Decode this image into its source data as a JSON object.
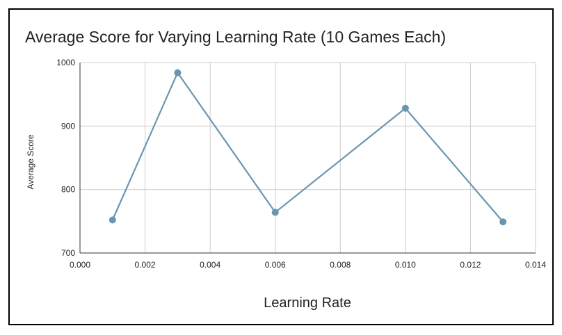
{
  "chart_data": {
    "type": "line",
    "title": "Average Score for Varying Learning Rate (10 Games Each)",
    "xlabel": "Learning Rate",
    "ylabel": "Average Score",
    "x": [
      0.001,
      0.003,
      0.006,
      0.01,
      0.013
    ],
    "series": [
      {
        "values": [
          752,
          984,
          764,
          928,
          749
        ]
      }
    ],
    "xlim": [
      0.0,
      0.014
    ],
    "ylim": [
      700,
      1000
    ],
    "xticks": [
      "0.000",
      "0.002",
      "0.004",
      "0.006",
      "0.008",
      "0.010",
      "0.012",
      "0.014"
    ],
    "yticks": [
      "700",
      "800",
      "900",
      "1000"
    ],
    "grid": true,
    "legend": "none",
    "colors": {
      "line": "#6a95b0",
      "marker": "#6a95b0",
      "grid": "#cccccc",
      "axis": "#333333"
    }
  }
}
